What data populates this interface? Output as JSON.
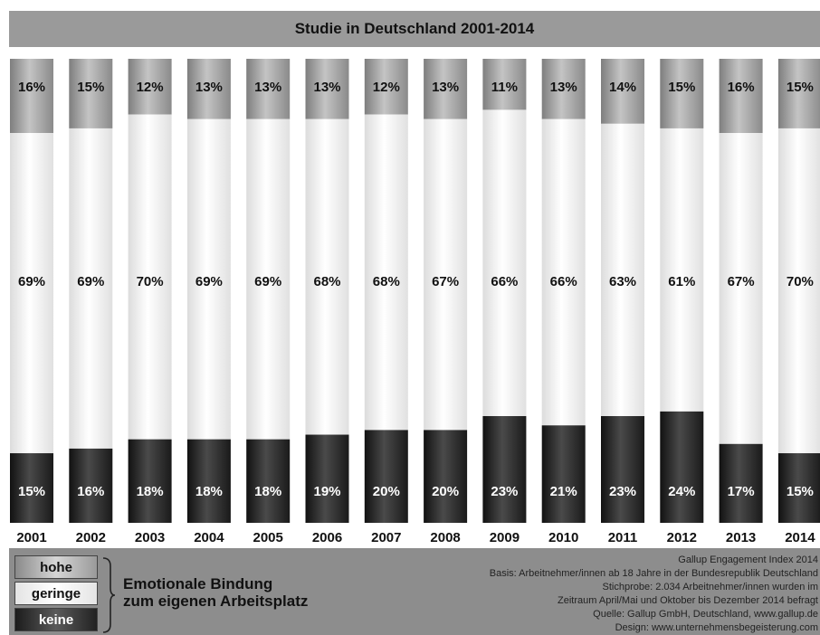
{
  "title": "Studie in Deutschland 2001-2014",
  "chart_data": {
    "type": "bar",
    "stacked": true,
    "categories": [
      "2001",
      "2002",
      "2003",
      "2004",
      "2005",
      "2006",
      "2007",
      "2008",
      "2009",
      "2010",
      "2011",
      "2012",
      "2013",
      "2014"
    ],
    "series": [
      {
        "name": "hohe",
        "values": [
          16,
          15,
          12,
          13,
          13,
          13,
          12,
          13,
          11,
          13,
          14,
          15,
          16,
          15
        ]
      },
      {
        "name": "geringe",
        "values": [
          69,
          69,
          70,
          69,
          69,
          68,
          68,
          67,
          66,
          66,
          63,
          61,
          67,
          70
        ]
      },
      {
        "name": "keine",
        "values": [
          15,
          16,
          18,
          18,
          18,
          19,
          20,
          20,
          23,
          21,
          23,
          24,
          17,
          15
        ]
      }
    ],
    "value_suffix": "%",
    "ylim": [
      0,
      100
    ],
    "colors": {
      "hohe": "#9e9e9e",
      "geringe": "#f2f2f2",
      "keine": "#2e2e2e"
    }
  },
  "legend": {
    "items": [
      {
        "key": "hohe",
        "label": "hohe"
      },
      {
        "key": "geringe",
        "label": "geringe"
      },
      {
        "key": "keine",
        "label": "keine"
      }
    ],
    "caption_line1": "Emotionale Bindung",
    "caption_line2": "zum eigenen Arbeitsplatz"
  },
  "source": {
    "line1": "Gallup Engagement Index 2014",
    "line2": "Basis: Arbeitnehmer/innen ab 18 Jahre in der Bundesrepublik Deutschland",
    "line3": "Stichprobe: 2.034 Arbeitnehmer/innen wurden im",
    "line4": "Zeitraum April/Mai und Oktober bis Dezember 2014 befragt",
    "line5": "Quelle: Gallup GmbH, Deutschland, www.gallup.de",
    "line6": "Design: www.unternehmensbegeisterung.com"
  }
}
